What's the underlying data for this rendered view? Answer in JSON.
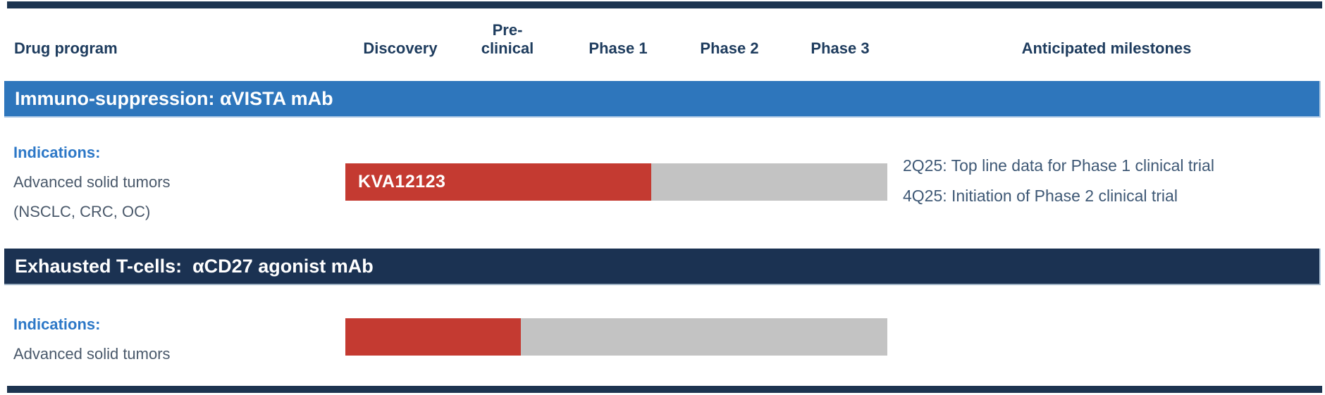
{
  "colors": {
    "rule_navy": "#1d3450",
    "banner_blue": "#2e76bc",
    "banner_navy": "#1b3252",
    "bar_red": "#c43a31",
    "track_gray": "#c3c3c3",
    "header_text": "#1e3c5e",
    "indication_label_blue": "#2d78c7",
    "body_text": "#49586a",
    "milestone_text": "#3e5875"
  },
  "header": {
    "drug_program": "Drug program",
    "phases": [
      "Discovery",
      "Pre-\nclinical",
      "Phase 1",
      "Phase 2",
      "Phase 3"
    ],
    "milestones": "Anticipated milestones"
  },
  "programs": [
    {
      "banner": "Immuno-suppression: αVISTA mAb",
      "indications_label": "Indications:",
      "indication_lines": [
        "Advanced solid tumors",
        "(NSCLC, CRC, OC)"
      ],
      "bar_label": "KVA12123",
      "progress_pct": 56.4,
      "milestones": [
        "2Q25: Top line data for Phase 1 clinical trial",
        "4Q25: Initiation of Phase 2 clinical trial"
      ]
    },
    {
      "banner": "Exhausted T-cells:  αCD27 agonist mAb",
      "indications_label": "Indications:",
      "indication_lines": [
        "Advanced solid tumors"
      ],
      "bar_label": "",
      "progress_pct": 32.4,
      "milestones": []
    }
  ],
  "chart_data": {
    "type": "bar",
    "orientation": "horizontal",
    "title": "Drug program pipeline",
    "phase_axis": [
      "Discovery",
      "Pre-clinical",
      "Phase 1",
      "Phase 2",
      "Phase 3"
    ],
    "track_range_phases": [
      0,
      5
    ],
    "series": [
      {
        "name": "KVA12123",
        "program": "Immuno-suppression: αVISTA mAb",
        "indications": "Advanced solid tumors (NSCLC, CRC, OC)",
        "progress_phases": 2.82,
        "progress_pct_of_track": 56.4,
        "current_stage": "Phase 1"
      },
      {
        "name": "αCD27 agonist mAb",
        "program": "Exhausted T-cells: αCD27 agonist mAb",
        "indications": "Advanced solid tumors",
        "progress_phases": 1.62,
        "progress_pct_of_track": 32.4,
        "current_stage": "Pre-clinical"
      }
    ],
    "annotations": [
      "2Q25: Top line data for Phase 1 clinical trial",
      "4Q25: Initiation of Phase 2 clinical trial"
    ],
    "fill_color": "#c43a31",
    "track_color": "#c3c3c3"
  }
}
